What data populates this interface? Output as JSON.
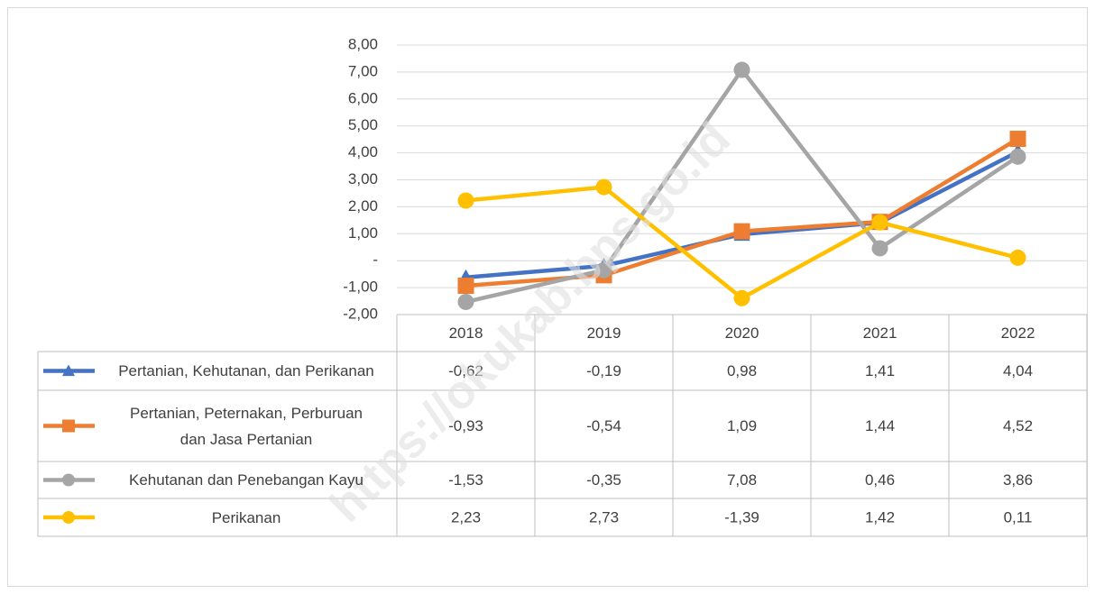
{
  "chart_data": {
    "type": "line",
    "categories": [
      "2018",
      "2019",
      "2020",
      "2021",
      "2022"
    ],
    "series": [
      {
        "name": "Pertanian, Kehutanan, dan Perikanan",
        "color": "#4472c4",
        "marker": "triangle",
        "values": [
          -0.62,
          -0.19,
          0.98,
          1.41,
          4.04
        ],
        "value_labels": [
          "-0,62",
          "-0,19",
          "0,98",
          "1,41",
          "4,04"
        ]
      },
      {
        "name": "Pertanian, Peternakan, Perburuan dan Jasa Pertanian",
        "color": "#ed7d31",
        "marker": "square",
        "values": [
          -0.93,
          -0.54,
          1.09,
          1.44,
          4.52
        ],
        "value_labels": [
          "-0,93",
          "-0,54",
          "1,09",
          "1,44",
          "4,52"
        ]
      },
      {
        "name": "Kehutanan dan Penebangan Kayu",
        "color": "#a5a5a5",
        "marker": "circle",
        "values": [
          -1.53,
          -0.35,
          7.08,
          0.46,
          3.86
        ],
        "value_labels": [
          "-1,53",
          "-0,35",
          "7,08",
          "0,46",
          "3,86"
        ]
      },
      {
        "name": "Perikanan",
        "color": "#ffc000",
        "marker": "circle",
        "values": [
          2.23,
          2.73,
          -1.39,
          1.42,
          0.11
        ],
        "value_labels": [
          "2,23",
          "2,73",
          "-1,39",
          "1,42",
          "0,11"
        ]
      }
    ],
    "ylim": [
      -2,
      8
    ],
    "yticks": [
      {
        "value": -2,
        "label": "-2,00"
      },
      {
        "value": -1,
        "label": "-1,00"
      },
      {
        "value": 0,
        "label": "-"
      },
      {
        "value": 1,
        "label": "1,00"
      },
      {
        "value": 2,
        "label": "2,00"
      },
      {
        "value": 3,
        "label": "3,00"
      },
      {
        "value": 4,
        "label": "4,00"
      },
      {
        "value": 5,
        "label": "5,00"
      },
      {
        "value": 6,
        "label": "6,00"
      },
      {
        "value": 7,
        "label": "7,00"
      },
      {
        "value": 8,
        "label": "8,00"
      }
    ],
    "grid": true,
    "watermark": "https://okukab.bps.go.id"
  }
}
